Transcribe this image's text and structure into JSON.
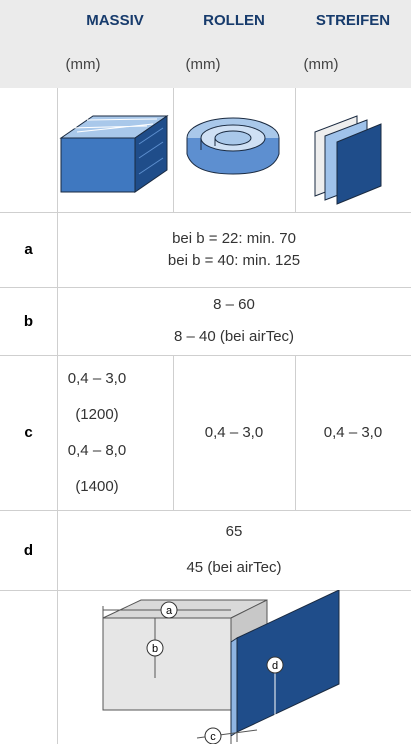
{
  "header": {
    "columns": [
      {
        "name": "MASSIV",
        "unit": "(mm)"
      },
      {
        "name": "ROLLEN",
        "unit": "(mm)"
      },
      {
        "name": "STREIFEN",
        "unit": "(mm)"
      }
    ]
  },
  "rows": [
    {
      "label": "a",
      "lines": [
        "bei b = 22: min. 70",
        "bei b = 40: min. 125"
      ]
    },
    {
      "label": "b",
      "lines": [
        "8 – 60",
        "8 – 40 (bei airTec)"
      ]
    },
    {
      "label": "c",
      "cells": [
        {
          "lines": [
            "0,4 – 3,0",
            "(1200)",
            "0,4 – 8,0",
            "(1400)"
          ]
        },
        {
          "lines": [
            "0,4 – 3,0"
          ]
        },
        {
          "lines": [
            "0,4 – 3,0"
          ]
        }
      ]
    },
    {
      "label": "d",
      "lines": [
        "65",
        "45 (bei airTec)"
      ]
    }
  ],
  "diagram": {
    "labels": [
      "a",
      "b",
      "c",
      "d"
    ]
  }
}
